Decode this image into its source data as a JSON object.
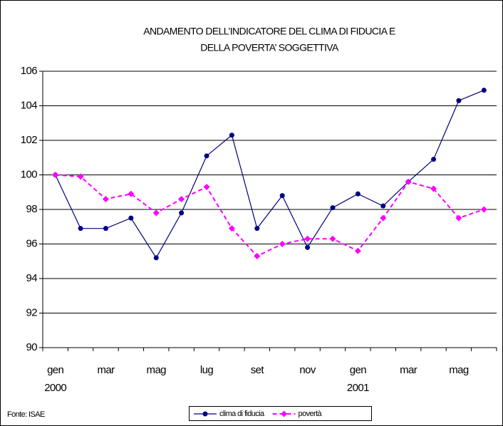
{
  "chart_data": {
    "type": "line",
    "title": [
      "ANDAMENTO DELL’INDICATORE DEL CLIMA DI FIDUCIA E",
      "DELLA POVERTA’ SOGGETTIVA"
    ],
    "categories": [
      "gen",
      null,
      "mar",
      null,
      "mag",
      null,
      "lug",
      null,
      "set",
      null,
      "nov",
      null,
      "gen",
      null,
      "mar",
      null,
      "mag",
      null
    ],
    "category_years": [
      "2000",
      null,
      null,
      null,
      null,
      null,
      null,
      null,
      null,
      null,
      null,
      null,
      "2001",
      null,
      null,
      null,
      null,
      null
    ],
    "series": [
      {
        "name": "clima di fiducia",
        "color": "#000080",
        "dashed": false,
        "marker": "circle",
        "values": [
          100,
          96.9,
          96.9,
          97.5,
          95.2,
          97.8,
          101.1,
          102.3,
          96.9,
          98.8,
          95.8,
          98.1,
          98.9,
          98.2,
          99.6,
          100.9,
          104.3,
          104.9
        ]
      },
      {
        "name": "povertà",
        "color": "#ff00ff",
        "dashed": true,
        "marker": "diamond",
        "values": [
          100,
          99.9,
          98.6,
          98.9,
          97.8,
          98.6,
          99.3,
          96.9,
          95.3,
          96.0,
          96.3,
          96.3,
          95.6,
          97.5,
          99.6,
          99.2,
          97.5,
          98.0
        ]
      }
    ],
    "ylim": [
      90,
      106
    ],
    "yticks": [
      90,
      92,
      94,
      96,
      98,
      100,
      102,
      104,
      106
    ],
    "grid": true,
    "source": "Fonte: ISAE",
    "legend": "bottom"
  }
}
